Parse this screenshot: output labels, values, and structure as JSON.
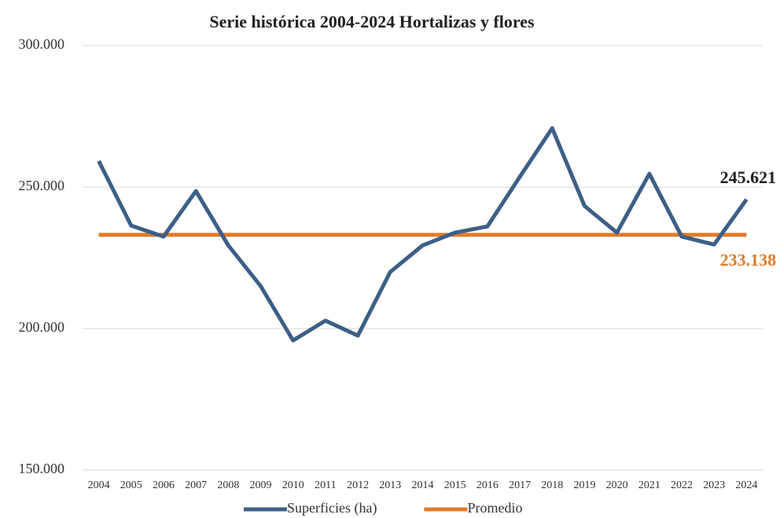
{
  "chart_data": {
    "type": "line",
    "title": "Serie histórica 2004-2024 Hortalizas y flores",
    "categories": [
      "2004",
      "2005",
      "2006",
      "2007",
      "2008",
      "2009",
      "2010",
      "2011",
      "2012",
      "2013",
      "2014",
      "2015",
      "2016",
      "2017",
      "2018",
      "2019",
      "2020",
      "2021",
      "2022",
      "2023",
      "2024"
    ],
    "series": [
      {
        "name": "Superficies (ha)",
        "color": "#3d5f87",
        "values": [
          259200,
          236400,
          232500,
          248600,
          229400,
          215000,
          195800,
          202800,
          197500,
          220000,
          229400,
          233900,
          236100,
          253600,
          270800,
          243300,
          233900,
          254700,
          232500,
          229700,
          245621
        ],
        "value_labels": [
          null,
          null,
          null,
          null,
          null,
          null,
          null,
          null,
          null,
          null,
          null,
          null,
          null,
          null,
          null,
          null,
          null,
          null,
          null,
          null,
          "245.621"
        ]
      },
      {
        "name": "Promedio",
        "color": "#e07b2a",
        "values": [
          233138,
          233138,
          233138,
          233138,
          233138,
          233138,
          233138,
          233138,
          233138,
          233138,
          233138,
          233138,
          233138,
          233138,
          233138,
          233138,
          233138,
          233138,
          233138,
          233138,
          233138
        ],
        "value_labels": [
          null,
          null,
          null,
          null,
          null,
          null,
          null,
          null,
          null,
          null,
          null,
          null,
          null,
          null,
          null,
          null,
          null,
          null,
          null,
          null,
          "233.138"
        ]
      }
    ],
    "ylim": [
      150000,
      300000
    ],
    "yticks": [
      {
        "value": 150000,
        "label": "150.000"
      },
      {
        "value": 200000,
        "label": "200.000"
      },
      {
        "value": 250000,
        "label": "250.000"
      },
      {
        "value": 300000,
        "label": "300.000"
      }
    ],
    "grid": true,
    "legend": "bottom"
  }
}
